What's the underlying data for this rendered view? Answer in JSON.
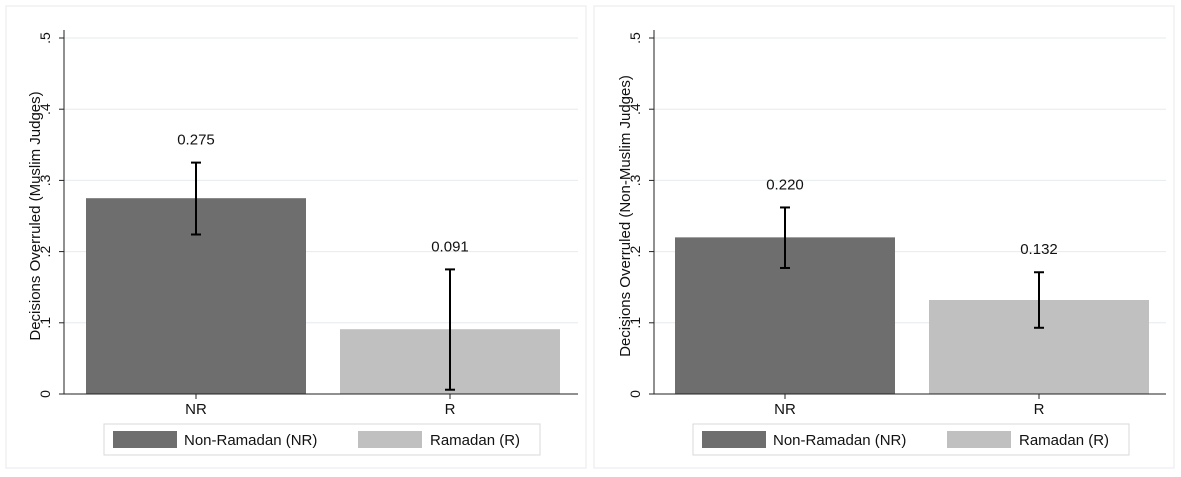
{
  "colors": {
    "nr_bar": "#6e6e6e",
    "r_bar": "#c0c0c0",
    "grid": "#e6ebee",
    "axis": "#222222",
    "error_bar": "#000000",
    "panel_border": "#e8e8e8",
    "legend_border": "#d8d8d8"
  },
  "legend": {
    "items": [
      {
        "label": "Non-Ramadan (NR)",
        "color": "#6e6e6e"
      },
      {
        "label": "Ramadan (R)",
        "color": "#c0c0c0"
      }
    ],
    "placement": "bottom-center"
  },
  "chart_data": [
    {
      "type": "bar",
      "ylabel": "Decisions Overruled (Muslim Judges)",
      "categories": [
        "NR",
        "R"
      ],
      "values": [
        0.275,
        0.091
      ],
      "value_labels": [
        "0.275",
        "0.091"
      ],
      "error_bars": [
        {
          "low": 0.224,
          "high": 0.325
        },
        {
          "low": 0.006,
          "high": 0.175
        }
      ],
      "ylim": [
        0,
        0.5
      ],
      "yticks": [
        0,
        0.1,
        0.2,
        0.3,
        0.4,
        0.5
      ],
      "ytick_labels": [
        "0",
        ".1",
        ".2",
        ".3",
        ".4",
        ".5"
      ],
      "grid": true
    },
    {
      "type": "bar",
      "ylabel": "Decisions Overruled (Non-Muslim Judges)",
      "categories": [
        "NR",
        "R"
      ],
      "values": [
        0.22,
        0.132
      ],
      "value_labels": [
        "0.220",
        "0.132"
      ],
      "error_bars": [
        {
          "low": 0.177,
          "high": 0.262
        },
        {
          "low": 0.093,
          "high": 0.171
        }
      ],
      "ylim": [
        0,
        0.5
      ],
      "yticks": [
        0,
        0.1,
        0.2,
        0.3,
        0.4,
        0.5
      ],
      "ytick_labels": [
        "0",
        ".1",
        ".2",
        ".3",
        ".4",
        ".5"
      ],
      "grid": true
    }
  ]
}
